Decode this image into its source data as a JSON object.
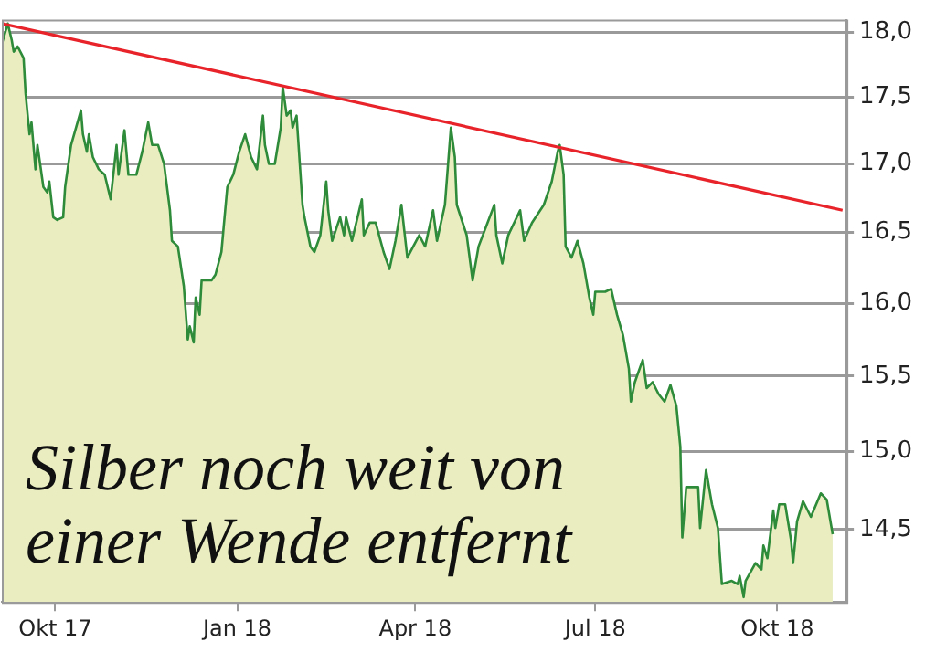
{
  "chart_data": {
    "type": "area",
    "log": "y",
    "grid": "y",
    "legend": false,
    "marker": "none",
    "line_style": "solid",
    "xlim": [
      "2017-09-04",
      "2018-11-05"
    ],
    "xticks": [
      {
        "value": "2017-10-01",
        "label": "Okt 17"
      },
      {
        "value": "2018-01-01",
        "label": "Jan 18"
      },
      {
        "value": "2018-04-01",
        "label": "Apr 18"
      },
      {
        "value": "2018-07-01",
        "label": "Jul 18"
      },
      {
        "value": "2018-10-01",
        "label": "Okt 18"
      }
    ],
    "ylim": [
      14.05,
      18.1
    ],
    "yticks": [
      {
        "value": 14.5,
        "label": "14,5"
      },
      {
        "value": 15,
        "label": "15,0"
      },
      {
        "value": 15.5,
        "label": "15,5"
      },
      {
        "value": 16,
        "label": "16,0"
      },
      {
        "value": 16.5,
        "label": "16,5"
      },
      {
        "value": 17,
        "label": "17,0"
      },
      {
        "value": 17.5,
        "label": "17,5"
      },
      {
        "value": 18,
        "label": "18,0"
      }
    ],
    "x": [
      "2017-09-04",
      "2017-09-07",
      "2017-09-09",
      "2017-09-10",
      "2017-09-12",
      "2017-09-15",
      "2017-09-16",
      "2017-09-18",
      "2017-09-19",
      "2017-09-21",
      "2017-09-22",
      "2017-09-25",
      "2017-09-27",
      "2017-09-28",
      "2017-09-30",
      "2017-10-02",
      "2017-10-05",
      "2017-10-06",
      "2017-10-09",
      "2017-10-14",
      "2017-10-15",
      "2017-10-17",
      "2017-10-18",
      "2017-10-20",
      "2017-10-23",
      "2017-10-26",
      "2017-10-29",
      "2017-11-01",
      "2017-11-02",
      "2017-11-05",
      "2017-11-07",
      "2017-11-11",
      "2017-11-14",
      "2017-11-17",
      "2017-11-19",
      "2017-11-22",
      "2017-11-25",
      "2017-11-28",
      "2017-11-29",
      "2017-12-02",
      "2017-12-05",
      "2017-12-07",
      "2017-12-08",
      "2017-12-10",
      "2017-12-11",
      "2017-12-13",
      "2017-12-14",
      "2017-12-19",
      "2017-12-21",
      "2017-12-24",
      "2017-12-27",
      "2017-12-30",
      "2018-01-02",
      "2018-01-05",
      "2018-01-08",
      "2018-01-11",
      "2018-01-14",
      "2018-01-15",
      "2018-01-17",
      "2018-01-20",
      "2018-01-23",
      "2018-01-24",
      "2018-01-26",
      "2018-01-28",
      "2018-01-29",
      "2018-01-31",
      "2018-02-01",
      "2018-02-03",
      "2018-02-04",
      "2018-02-07",
      "2018-02-09",
      "2018-02-12",
      "2018-02-15",
      "2018-02-16",
      "2018-02-18",
      "2018-02-22",
      "2018-02-24",
      "2018-02-25",
      "2018-02-28",
      "2018-03-05",
      "2018-03-06",
      "2018-03-09",
      "2018-03-12",
      "2018-03-16",
      "2018-03-19",
      "2018-03-22",
      "2018-03-25",
      "2018-03-28",
      "2018-03-31",
      "2018-04-03",
      "2018-04-06",
      "2018-04-10",
      "2018-04-12",
      "2018-04-16",
      "2018-04-19",
      "2018-04-21",
      "2018-04-22",
      "2018-04-27",
      "2018-04-30",
      "2018-05-03",
      "2018-05-11",
      "2018-05-12",
      "2018-05-15",
      "2018-05-18",
      "2018-05-24",
      "2018-05-26",
      "2018-05-30",
      "2018-06-05",
      "2018-06-09",
      "2018-06-12",
      "2018-06-13",
      "2018-06-15",
      "2018-06-16",
      "2018-06-19",
      "2018-06-22",
      "2018-06-25",
      "2018-06-28",
      "2018-06-30",
      "2018-07-01",
      "2018-07-06",
      "2018-07-09",
      "2018-07-12",
      "2018-07-15",
      "2018-07-18",
      "2018-07-19",
      "2018-07-21",
      "2018-07-25",
      "2018-07-27",
      "2018-07-30",
      "2018-08-02",
      "2018-08-05",
      "2018-08-08",
      "2018-08-11",
      "2018-08-13",
      "2018-08-14",
      "2018-08-16",
      "2018-08-22",
      "2018-08-23",
      "2018-08-26",
      "2018-08-29",
      "2018-09-01",
      "2018-09-03",
      "2018-09-08",
      "2018-09-11",
      "2018-09-12",
      "2018-09-14",
      "2018-09-15",
      "2018-09-20",
      "2018-09-23",
      "2018-09-24",
      "2018-09-26",
      "2018-09-29",
      "2018-09-30",
      "2018-10-02",
      "2018-10-05",
      "2018-10-08",
      "2018-10-09",
      "2018-10-11",
      "2018-10-14",
      "2018-10-18",
      "2018-10-23",
      "2018-10-26",
      "2018-10-29"
    ],
    "series": [
      {
        "color": "#2e8b3a",
        "values": [
          17.91,
          18.07,
          17.94,
          17.85,
          17.89,
          17.8,
          17.53,
          17.22,
          17.31,
          16.96,
          17.14,
          16.83,
          16.79,
          16.87,
          16.61,
          16.59,
          16.61,
          16.83,
          17.14,
          17.4,
          17.22,
          17.09,
          17.22,
          17.05,
          16.96,
          16.92,
          16.74,
          17.14,
          16.92,
          17.25,
          16.92,
          16.92,
          17.09,
          17.31,
          17.14,
          17.14,
          17.0,
          16.66,
          16.44,
          16.4,
          16.12,
          15.75,
          15.84,
          15.73,
          16.04,
          15.92,
          16.16,
          16.16,
          16.2,
          16.36,
          16.83,
          16.92,
          17.09,
          17.22,
          17.05,
          16.96,
          17.36,
          17.14,
          17.0,
          17.0,
          17.27,
          17.58,
          17.36,
          17.4,
          17.27,
          17.36,
          17.14,
          16.7,
          16.61,
          16.4,
          16.36,
          16.48,
          16.87,
          16.66,
          16.44,
          16.61,
          16.48,
          16.61,
          16.44,
          16.74,
          16.48,
          16.57,
          16.57,
          16.36,
          16.24,
          16.44,
          16.7,
          16.32,
          16.4,
          16.48,
          16.4,
          16.66,
          16.44,
          16.7,
          17.27,
          17.05,
          16.7,
          16.48,
          16.16,
          16.4,
          16.7,
          16.48,
          16.28,
          16.48,
          16.66,
          16.44,
          16.57,
          16.7,
          16.87,
          17.09,
          17.14,
          16.92,
          16.4,
          16.32,
          16.44,
          16.28,
          16.04,
          15.92,
          16.08,
          16.08,
          16.1,
          15.92,
          15.78,
          15.55,
          15.33,
          15.46,
          15.61,
          15.42,
          15.46,
          15.38,
          15.33,
          15.44,
          15.3,
          15.03,
          14.45,
          14.77,
          14.77,
          14.51,
          14.88,
          14.66,
          14.51,
          14.16,
          14.18,
          14.16,
          14.21,
          14.08,
          14.18,
          14.29,
          14.25,
          14.4,
          14.32,
          14.62,
          14.51,
          14.66,
          14.66,
          14.43,
          14.29,
          14.55,
          14.68,
          14.58,
          14.73,
          14.69,
          14.47
        ]
      },
      {
        "type": "line",
        "color": "#e8232a",
        "x": [
          "2017-09-04",
          "2018-11-03"
        ],
        "values": [
          18.07,
          16.66
        ]
      }
    ],
    "annotations": [
      "Silber noch weit von\neiner Wende entfernt"
    ]
  }
}
